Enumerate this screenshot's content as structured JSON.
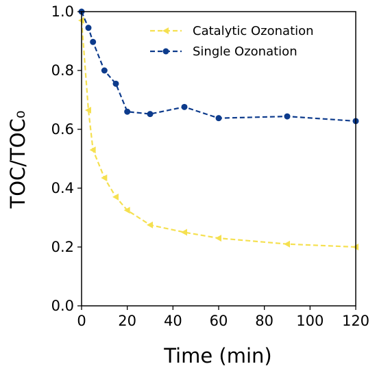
{
  "chart_data": {
    "type": "line",
    "xlabel": "Time (min)",
    "ylabel": "TOC/TOC₀",
    "xlim": [
      0,
      120
    ],
    "ylim": [
      0.0,
      1.0
    ],
    "x_ticks": [
      "0",
      "20",
      "40",
      "60",
      "80",
      "100",
      "120"
    ],
    "y_ticks": [
      "0.0",
      "0.2",
      "0.4",
      "0.6",
      "0.8",
      "1.0"
    ],
    "x_tick_values": [
      0,
      20,
      40,
      60,
      80,
      100,
      120
    ],
    "y_tick_values": [
      0.0,
      0.2,
      0.4,
      0.6,
      0.8,
      1.0
    ],
    "grid": false,
    "legend_position": "top-right",
    "series": [
      {
        "name": "Catalytic Ozonation",
        "color": "#f5e050",
        "marker": "left-triangle",
        "line_style": "dashed",
        "x": [
          0,
          3,
          5,
          10,
          15,
          20,
          30,
          45,
          60,
          90,
          120
        ],
        "y": [
          0.97,
          0.665,
          0.53,
          0.435,
          0.37,
          0.325,
          0.275,
          0.25,
          0.23,
          0.21,
          0.2
        ]
      },
      {
        "name": "Single Ozonation",
        "color": "#0d3b8c",
        "marker": "circle",
        "line_style": "dashed",
        "x": [
          0,
          3,
          5,
          10,
          15,
          20,
          30,
          45,
          60,
          90,
          120
        ],
        "y": [
          1.0,
          0.945,
          0.897,
          0.8,
          0.755,
          0.66,
          0.652,
          0.676,
          0.638,
          0.644,
          0.628
        ]
      }
    ]
  }
}
